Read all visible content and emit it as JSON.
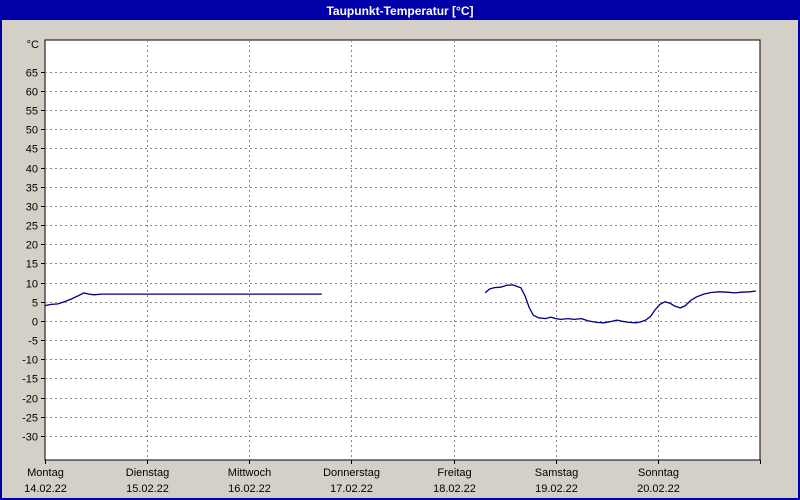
{
  "title": "Taupunkt-Temperatur [°C]",
  "colors": {
    "titlebar_bg": "#0000a8",
    "titlebar_text": "#ffffff",
    "page_bg": "#d4d0c8",
    "frame_border": "#0000a8",
    "plot_bg": "#ffffff",
    "grid": "#888888",
    "axis": "#000000",
    "line": "#000080",
    "label": "#000000"
  },
  "chart_data": {
    "type": "line",
    "title": "Taupunkt-Temperatur [°C]",
    "ylabel": "°C",
    "legend": "none",
    "grid": "dashed",
    "ylim": [
      -36.3,
      73.3
    ],
    "yticks": [
      65,
      60,
      55,
      50,
      45,
      40,
      35,
      30,
      25,
      20,
      15,
      10,
      5,
      0,
      -5,
      -10,
      -15,
      -20,
      -25,
      -30
    ],
    "xlim_days": [
      0,
      7
    ],
    "days": [
      {
        "label": "Montag",
        "date": "14.02.22"
      },
      {
        "label": "Dienstag",
        "date": "15.02.22"
      },
      {
        "label": "Mittwoch",
        "date": "16.02.22"
      },
      {
        "label": "Donnerstag",
        "date": "17.02.22"
      },
      {
        "label": "Freitag",
        "date": "18.02.22"
      },
      {
        "label": "Samstag",
        "date": "19.02.22"
      },
      {
        "label": "Sonntag",
        "date": "20.02.22"
      }
    ],
    "series": [
      {
        "name": "Taupunkt-Temperatur",
        "color": "#000080",
        "unit": "°C",
        "segments": [
          [
            [
              0.0,
              4.0
            ],
            [
              0.06,
              4.3
            ],
            [
              0.12,
              4.4
            ],
            [
              0.18,
              4.9
            ],
            [
              0.25,
              5.6
            ],
            [
              0.32,
              6.5
            ],
            [
              0.38,
              7.3
            ],
            [
              0.43,
              7.0
            ],
            [
              0.48,
              6.8
            ],
            [
              0.55,
              7.0
            ],
            [
              2.71,
              7.0
            ]
          ],
          [
            [
              4.31,
              7.3
            ],
            [
              4.35,
              8.3
            ],
            [
              4.4,
              8.7
            ],
            [
              4.46,
              8.8
            ],
            [
              4.52,
              9.3
            ],
            [
              4.58,
              9.4
            ],
            [
              4.62,
              9.0
            ],
            [
              4.66,
              8.6
            ],
            [
              4.7,
              6.5
            ],
            [
              4.74,
              3.5
            ],
            [
              4.78,
              1.5
            ],
            [
              4.83,
              0.8
            ],
            [
              4.9,
              0.6
            ],
            [
              4.95,
              1.0
            ],
            [
              5.0,
              0.6
            ],
            [
              5.05,
              0.4
            ],
            [
              5.12,
              0.6
            ],
            [
              5.18,
              0.4
            ],
            [
              5.25,
              0.6
            ],
            [
              5.32,
              0.0
            ],
            [
              5.4,
              -0.4
            ],
            [
              5.47,
              -0.5
            ],
            [
              5.53,
              -0.2
            ],
            [
              5.6,
              0.2
            ],
            [
              5.65,
              -0.1
            ],
            [
              5.72,
              -0.4
            ],
            [
              5.78,
              -0.5
            ],
            [
              5.83,
              -0.3
            ],
            [
              5.88,
              0.2
            ],
            [
              5.93,
              1.2
            ],
            [
              5.97,
              2.8
            ],
            [
              6.02,
              4.3
            ],
            [
              6.07,
              5.0
            ],
            [
              6.12,
              4.6
            ],
            [
              6.17,
              3.8
            ],
            [
              6.22,
              3.4
            ],
            [
              6.27,
              4.0
            ],
            [
              6.32,
              5.3
            ],
            [
              6.38,
              6.3
            ],
            [
              6.45,
              7.0
            ],
            [
              6.52,
              7.4
            ],
            [
              6.6,
              7.6
            ],
            [
              6.68,
              7.5
            ],
            [
              6.75,
              7.3
            ],
            [
              6.82,
              7.5
            ],
            [
              6.9,
              7.6
            ],
            [
              6.96,
              7.8
            ]
          ]
        ]
      }
    ]
  }
}
